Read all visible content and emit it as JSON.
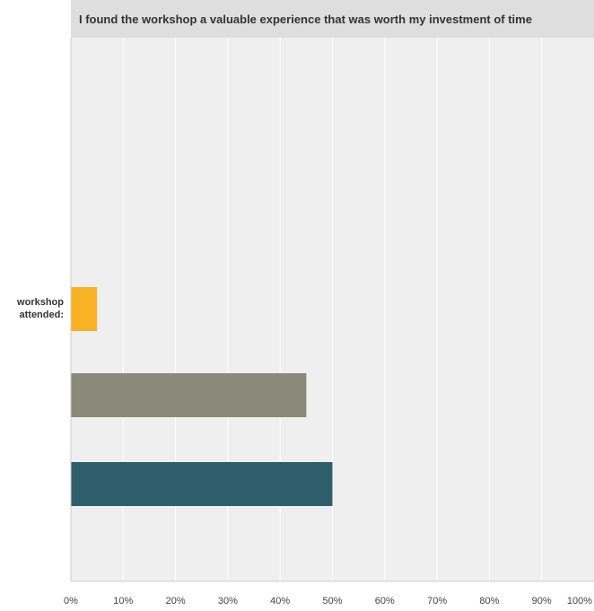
{
  "chart_data": {
    "type": "bar",
    "orientation": "horizontal",
    "title": "I found the workshop a valuable experience that was worth my investment of time",
    "category_label": "workshop attended:",
    "series": [
      {
        "value": 5,
        "color": "#f9b224"
      },
      {
        "value": 45,
        "color": "#898a79"
      },
      {
        "value": 50,
        "color": "#2f5f6a"
      }
    ],
    "xlim": [
      0,
      100
    ],
    "x_ticks": [
      "0%",
      "10%",
      "20%",
      "30%",
      "40%",
      "50%",
      "60%",
      "70%",
      "80%",
      "90%",
      "100%"
    ],
    "grid": true,
    "colors": {
      "plot_background": "#efefef",
      "title_bar": "#dedede",
      "grid": "#ffffff",
      "axis": "#cccccc"
    }
  }
}
